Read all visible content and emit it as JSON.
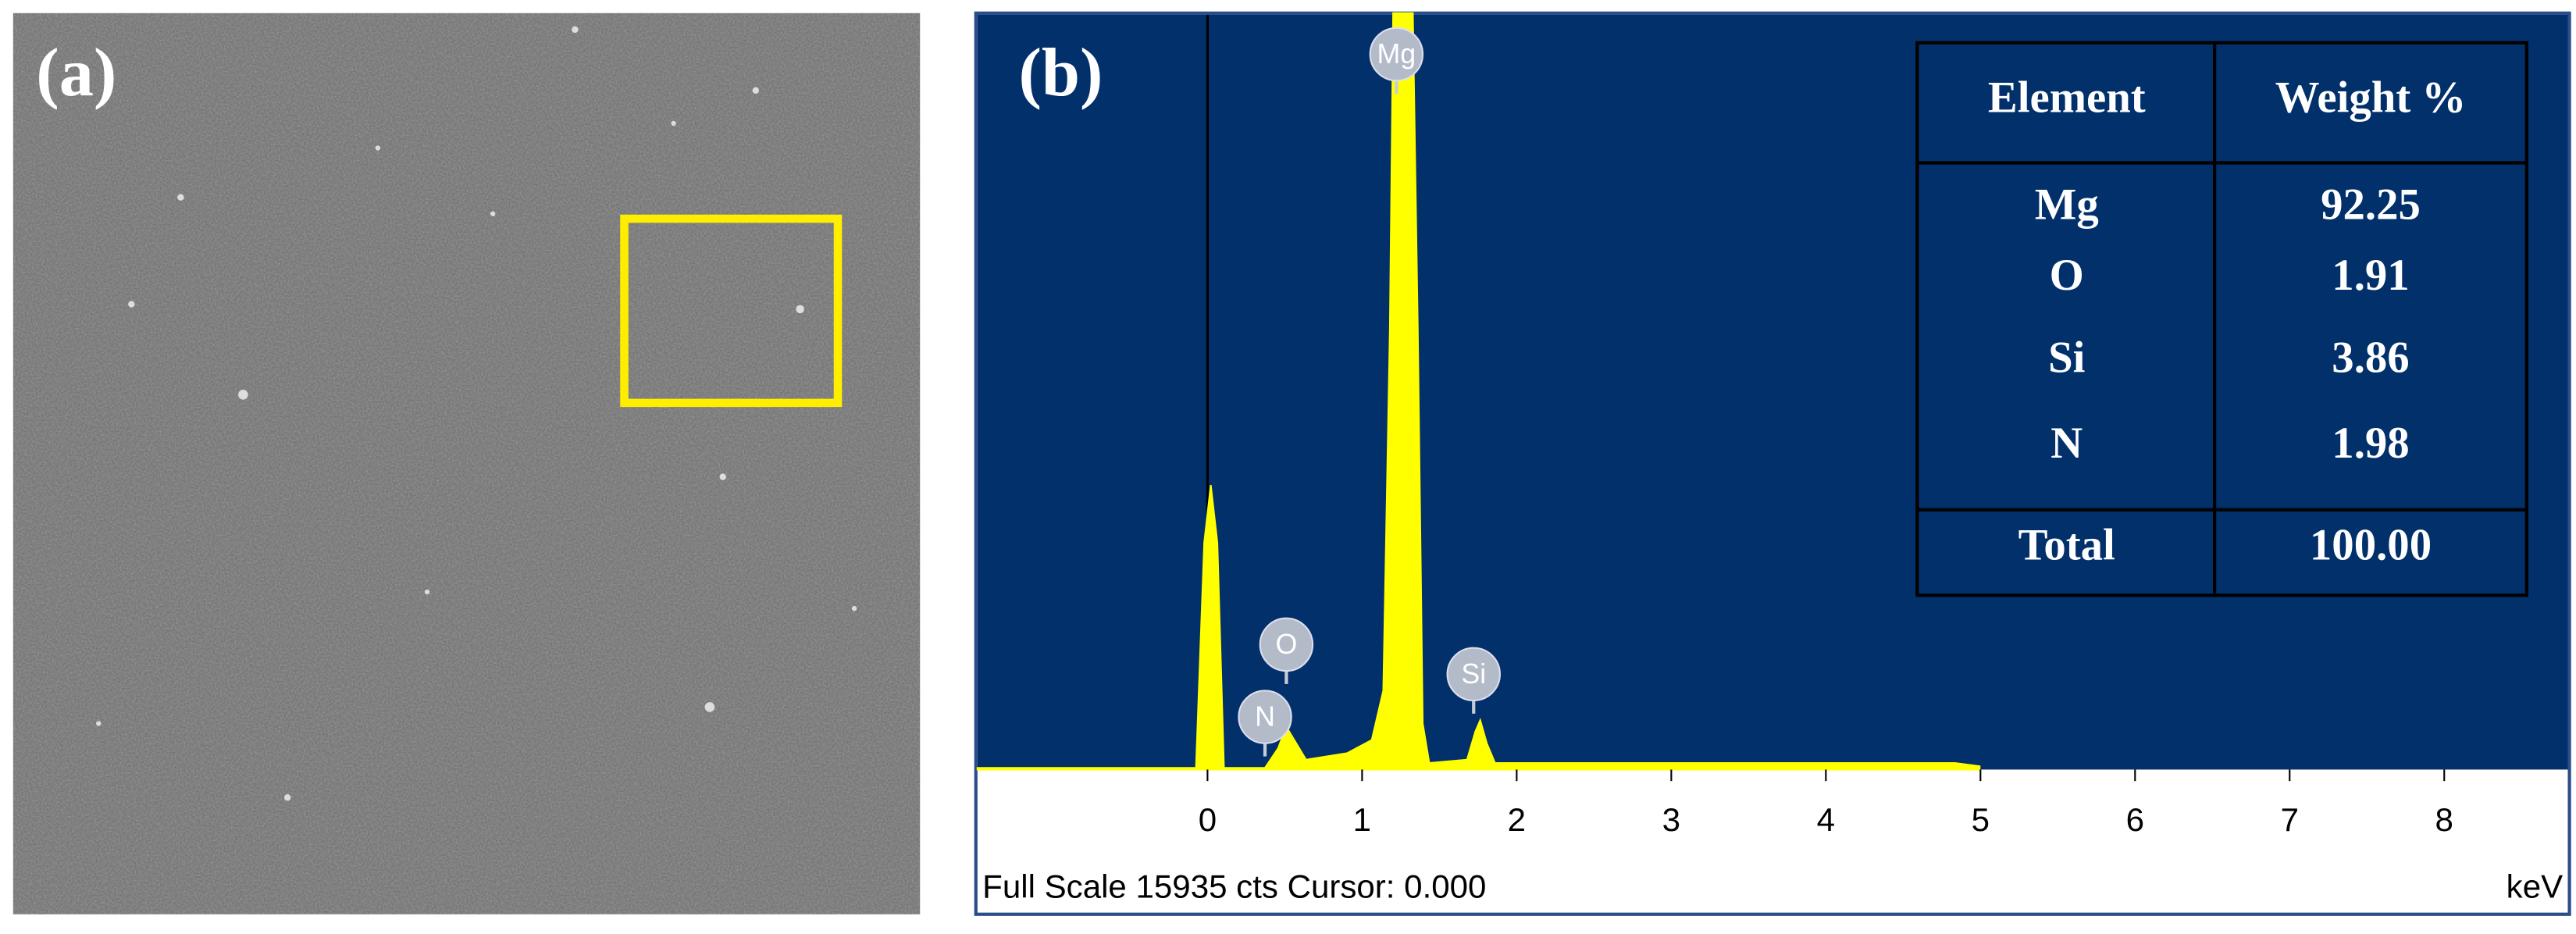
{
  "panel_a": {
    "label": "(a)"
  },
  "panel_b": {
    "label": "(b)",
    "peaks": [
      "Mg",
      "O",
      "N",
      "Si"
    ],
    "table": {
      "header": [
        "Element",
        "Weight %"
      ],
      "rows": [
        [
          "Mg",
          "92.25"
        ],
        [
          "O",
          "1.91"
        ],
        [
          "Si",
          "3.86"
        ],
        [
          "N",
          "1.98"
        ]
      ],
      "total": [
        "Total",
        "100.00"
      ]
    },
    "xticks": [
      0,
      1,
      2,
      3,
      4,
      5,
      6,
      7,
      8
    ],
    "footer": "Full Scale 15935 cts Cursor: 0.000",
    "unit": "keV"
  }
}
